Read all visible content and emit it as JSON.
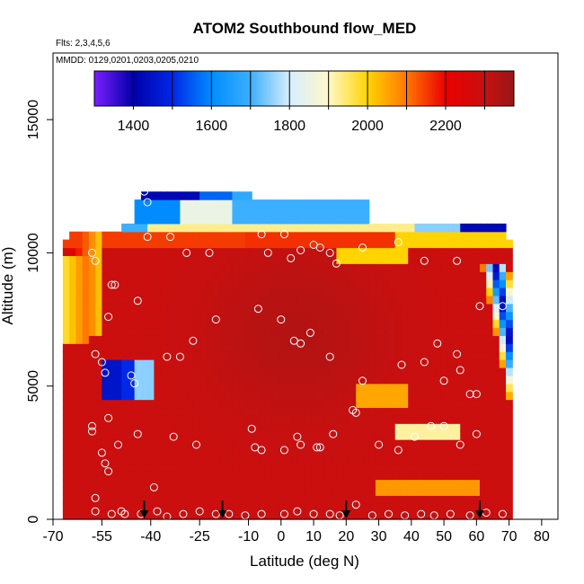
{
  "chart_data": {
    "type": "heatmap",
    "title": "ATOM2 Southbound flow_MED",
    "annotations": [
      "Flts: 2,3,4,5,6",
      "MMDD: 0129,0201,0203,0205,0210"
    ],
    "xlabel": "Latitude (deg N)",
    "ylabel": "Altitude (m)",
    "xlim": [
      -70,
      85
    ],
    "ylim": [
      0,
      17500
    ],
    "x_ticks": [
      -70,
      -55,
      -40,
      -25,
      -10,
      0,
      10,
      20,
      30,
      40,
      50,
      60,
      70,
      80
    ],
    "y_ticks": [
      0,
      5000,
      10000,
      15000
    ],
    "grid": false,
    "colorbar": {
      "range": [
        1300,
        2375
      ],
      "ticks": [
        1400,
        1600,
        1800,
        2000,
        2200
      ],
      "boundaries": [
        1400,
        1500,
        1600,
        1700,
        1800,
        1900,
        2000,
        2100,
        2200,
        2300
      ],
      "colors": [
        "#7a1fff",
        "#0000a8",
        "#0090ff",
        "#cfeaff",
        "#fff5c0",
        "#ffd400",
        "#ff7a00",
        "#e50000",
        "#9c1818"
      ]
    },
    "arrows_at_latitude": [
      -42,
      -18,
      20,
      61
    ],
    "observation_points": [
      [
        -58,
        10000
      ],
      [
        -57,
        9700
      ],
      [
        -52,
        8800
      ],
      [
        -51,
        8800
      ],
      [
        -53,
        7600
      ],
      [
        -57,
        6200
      ],
      [
        -55,
        5900
      ],
      [
        -54,
        5500
      ],
      [
        -45,
        5100
      ],
      [
        -46,
        5400
      ],
      [
        -53,
        3800
      ],
      [
        -58,
        3300
      ],
      [
        -58,
        3500
      ],
      [
        -50,
        2800
      ],
      [
        -55,
        2500
      ],
      [
        -54,
        2100
      ],
      [
        -53,
        1800
      ],
      [
        -57,
        800
      ],
      [
        -57,
        300
      ],
      [
        -52,
        200
      ],
      [
        -49,
        300
      ],
      [
        -48,
        200
      ],
      [
        -43,
        200
      ],
      [
        -38,
        300
      ],
      [
        -35,
        100
      ],
      [
        -30,
        200
      ],
      [
        -25,
        300
      ],
      [
        -20,
        200
      ],
      [
        -16,
        200
      ],
      [
        -11,
        150
      ],
      [
        -6,
        200
      ],
      [
        1,
        200
      ],
      [
        5,
        300
      ],
      [
        10,
        200
      ],
      [
        15,
        200
      ],
      [
        18,
        150
      ],
      [
        23,
        550
      ],
      [
        28,
        150
      ],
      [
        33,
        200
      ],
      [
        38,
        150
      ],
      [
        43,
        200
      ],
      [
        47,
        150
      ],
      [
        52,
        200
      ],
      [
        58,
        150
      ],
      [
        63,
        250
      ],
      [
        68,
        200
      ],
      [
        -41,
        10600
      ],
      [
        -34,
        10600
      ],
      [
        -29,
        10000
      ],
      [
        -22,
        10000
      ],
      [
        -44,
        8200
      ],
      [
        -35,
        6100
      ],
      [
        -27,
        6700
      ],
      [
        -20,
        7500
      ],
      [
        -7,
        7900
      ],
      [
        -6,
        10700
      ],
      [
        -4,
        10000
      ],
      [
        1,
        10700
      ],
      [
        3,
        9800
      ],
      [
        6,
        10100
      ],
      [
        10,
        10300
      ],
      [
        12,
        10200
      ],
      [
        15,
        10000
      ],
      [
        17,
        9600
      ],
      [
        25,
        10200
      ],
      [
        36,
        10400
      ],
      [
        44,
        9700
      ],
      [
        54,
        9700
      ],
      [
        62,
        11300
      ],
      [
        65,
        11300
      ],
      [
        68,
        8000
      ],
      [
        61,
        8000
      ],
      [
        0,
        7500
      ],
      [
        4,
        6700
      ],
      [
        6,
        6600
      ],
      [
        9,
        7000
      ],
      [
        15,
        6100
      ],
      [
        22,
        4100
      ],
      [
        23,
        4000
      ],
      [
        25,
        5200
      ],
      [
        37,
        5800
      ],
      [
        44,
        5900
      ],
      [
        50,
        5200
      ],
      [
        54,
        6200
      ],
      [
        48,
        6600
      ],
      [
        55,
        5600
      ],
      [
        58,
        4700
      ],
      [
        60,
        4700
      ],
      [
        -42,
        12300
      ],
      [
        -41,
        11900
      ],
      [
        -31,
        6100
      ],
      [
        -26,
        2800
      ],
      [
        -33,
        3100
      ],
      [
        -9,
        3400
      ],
      [
        -8,
        2700
      ],
      [
        -6,
        2600
      ],
      [
        1,
        2600
      ],
      [
        5,
        3100
      ],
      [
        6,
        2800
      ],
      [
        11,
        2700
      ],
      [
        12,
        2700
      ],
      [
        16,
        3200
      ],
      [
        30,
        2800
      ],
      [
        36,
        2600
      ],
      [
        41,
        3100
      ],
      [
        46,
        3500
      ],
      [
        50,
        3500
      ],
      [
        55,
        2800
      ],
      [
        60,
        3200
      ],
      [
        -39,
        1200
      ],
      [
        -44,
        3200
      ]
    ]
  }
}
